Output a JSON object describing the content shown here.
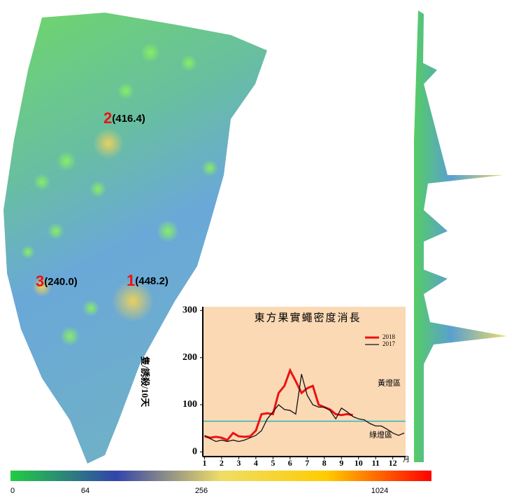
{
  "map": {
    "markers": [
      {
        "rank": "2",
        "value_label": "(416.4)"
      },
      {
        "rank": "3",
        "value_label": "(240.0)"
      },
      {
        "rank": "1",
        "value_label": "(448.2)"
      }
    ]
  },
  "colorbar": {
    "ticks": [
      0,
      64,
      256,
      1024
    ],
    "colors": [
      "#22cc44",
      "#3344aa",
      "#eedd66",
      "#ffcc00",
      "#ff0000"
    ]
  },
  "chart_data": {
    "type": "line",
    "title": "東方果實蠅密度消長",
    "y_label": "隻/誘殺/10天",
    "x_unit": "月",
    "annotations": [
      "黃燈區",
      "綠燈區"
    ],
    "reference_line": {
      "value": 65,
      "color": "#2ab7b7"
    },
    "x": [
      1,
      1.33,
      1.67,
      2,
      2.33,
      2.67,
      3,
      3.33,
      3.67,
      4,
      4.33,
      4.67,
      5,
      5.33,
      5.67,
      6,
      6.33,
      6.67,
      7,
      7.33,
      7.67,
      8,
      8.33,
      8.67,
      9,
      9.33,
      9.67,
      10,
      10.33,
      10.67,
      11,
      11.33,
      11.67,
      12,
      12.33,
      12.67
    ],
    "series": [
      {
        "name": "2018",
        "color": "#ee1111",
        "values": [
          33,
          30,
          32,
          30,
          25,
          40,
          33,
          32,
          33,
          45,
          80,
          82,
          80,
          125,
          140,
          173,
          150,
          125,
          135,
          140,
          100,
          95,
          90,
          80,
          78,
          80,
          78,
          null,
          null,
          null,
          null,
          null,
          null,
          null,
          null,
          null
        ]
      },
      {
        "name": "2017",
        "color": "#111111",
        "values": [
          35,
          28,
          22,
          25,
          22,
          25,
          22,
          25,
          30,
          35,
          45,
          70,
          85,
          100,
          90,
          88,
          80,
          165,
          120,
          100,
          95,
          95,
          88,
          70,
          93,
          85,
          75,
          70,
          68,
          60,
          55,
          55,
          48,
          40,
          35,
          40
        ]
      }
    ],
    "xlim": [
      0.9,
      12.75
    ],
    "xticks": [
      1,
      2,
      3,
      4,
      5,
      6,
      7,
      8,
      9,
      10,
      11,
      12
    ],
    "ylim": [
      -10,
      308
    ],
    "yticks": [
      0,
      100,
      200,
      300
    ]
  }
}
